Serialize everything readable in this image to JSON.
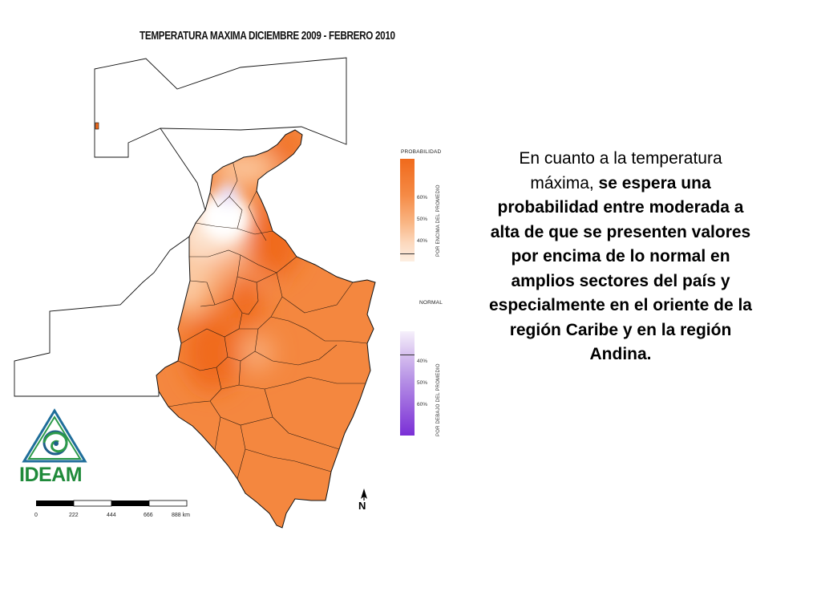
{
  "map": {
    "title": "TEMPERATURA MAXIMA  DICIEMBRE 2009  -  FEBRERO 2010",
    "colors": {
      "outline": "#111111",
      "above_high": "#f06a1c",
      "above_mid": "#f4873f",
      "above_low": "#fbcaa3",
      "neutral": "#ffffff",
      "below_light": "#e9def5"
    }
  },
  "legend": {
    "probability_heading": "PROBABILIDAD",
    "above": {
      "axis_label": "POR ENCIMA DEL PROMEDIO",
      "ticks": [
        "60%",
        "50%",
        "40%"
      ]
    },
    "normal_heading": "NORMAL",
    "below": {
      "axis_label": "POR DEBAJO DEL PROMEDIO",
      "ticks": [
        "40%",
        "50%",
        "60%"
      ]
    }
  },
  "scale_bar": {
    "labels": [
      "0",
      "222",
      "444",
      "666",
      "888 km"
    ]
  },
  "north_arrow": {
    "label": "N",
    "icon": "north-arrow-icon"
  },
  "logo": {
    "text": "IDEAM",
    "icon": "ideam-logo-icon",
    "color": "#1f8a3a"
  },
  "narrative": {
    "part1": "En cuanto a la temperatura máxima, ",
    "part2_bold": "se espera una probabilidad entre moderada a alta de que se presenten valores por encima de lo normal en amplios sectores del país y especialmente en el oriente de la región Caribe y en la región Andina."
  }
}
